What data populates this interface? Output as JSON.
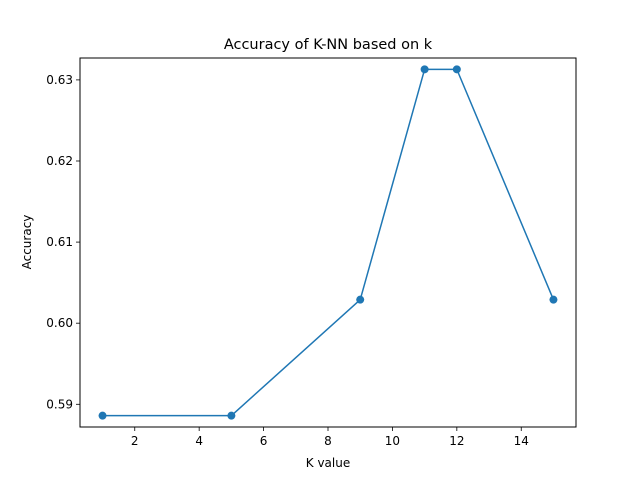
{
  "chart_data": {
    "type": "line",
    "title": "Accuracy of K-NN based on k",
    "xlabel": "K value",
    "ylabel": "Accuracy",
    "x": [
      1,
      5,
      9,
      11,
      12,
      15
    ],
    "series": [
      {
        "values": [
          0.5886,
          0.5886,
          0.6029,
          0.6313,
          0.6313,
          0.6029
        ]
      }
    ],
    "xlim": [
      0.3,
      15.7
    ],
    "ylim": [
      0.5872,
      0.6327
    ],
    "xticks": [
      2,
      4,
      6,
      8,
      10,
      12,
      14
    ],
    "xtick_labels": [
      "2",
      "4",
      "6",
      "8",
      "10",
      "12",
      "14"
    ],
    "yticks": [
      0.59,
      0.6,
      0.61,
      0.62,
      0.63
    ],
    "ytick_labels": [
      "0.59",
      "0.60",
      "0.61",
      "0.62",
      "0.63"
    ],
    "markers": "circle",
    "grid": false,
    "line_color": "#1f77b4"
  }
}
